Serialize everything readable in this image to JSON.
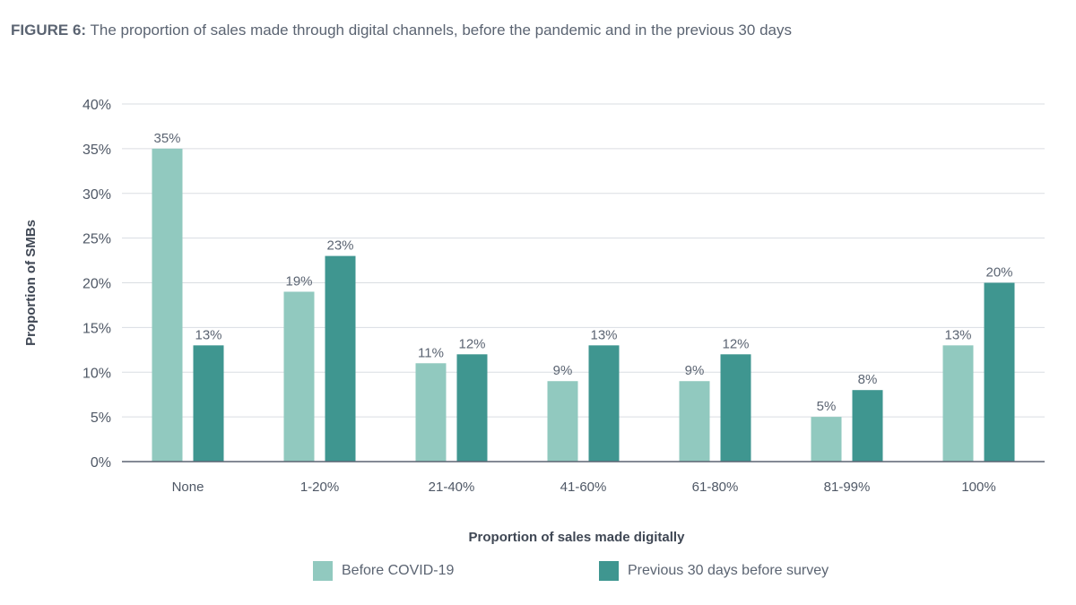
{
  "title_prefix": "FIGURE 6:",
  "title_text": " The proportion of sales made through digital channels, before the pandemic and in the previous 30 days",
  "chart_data": {
    "type": "bar",
    "title": "FIGURE 6: The proportion of sales made through digital channels, before the pandemic and in the previous 30 days",
    "xlabel": "Proportion of sales made digitally",
    "ylabel": "Proportion of SMBs",
    "categories": [
      "None",
      "1-20%",
      "21-40%",
      "41-60%",
      "61-80%",
      "81-99%",
      "100%"
    ],
    "series": [
      {
        "name": "Before COVID-19",
        "values": [
          35,
          19,
          11,
          9,
          9,
          5,
          13
        ],
        "color": "#91c9bf"
      },
      {
        "name": "Previous 30 days before survey",
        "values": [
          13,
          23,
          12,
          13,
          12,
          8,
          20
        ],
        "color": "#3f9690"
      }
    ],
    "ylim": [
      0,
      40
    ],
    "yticks": [
      "0%",
      "5%",
      "10%",
      "15%",
      "20%",
      "25%",
      "30%",
      "35%",
      "40%"
    ],
    "value_suffix": "%",
    "grid": true,
    "legend_placement": "bottom-center"
  }
}
